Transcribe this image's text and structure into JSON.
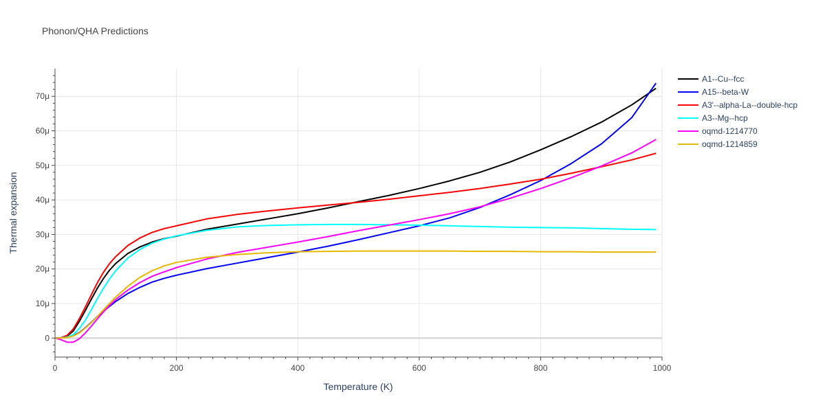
{
  "chart_data": {
    "type": "line",
    "title": "Phonon/QHA Predictions",
    "xlabel": "Temperature (K)",
    "ylabel": "Thermal expansion",
    "xlim": [
      0,
      1000
    ],
    "ylim": [
      -5.5,
      78
    ],
    "xticks": [
      0,
      200,
      400,
      600,
      800,
      1000
    ],
    "xtick_labels": [
      "0",
      "200",
      "400",
      "600",
      "800",
      "1000"
    ],
    "yticks": [
      0,
      10,
      20,
      30,
      40,
      50,
      60,
      70
    ],
    "ytick_labels": [
      "0",
      "10μ",
      "20μ",
      "30μ",
      "40μ",
      "50μ",
      "60μ",
      "70μ"
    ],
    "grid": true,
    "legend_position": "right",
    "series": [
      {
        "name": "A1--Cu--fcc",
        "color": "#000000",
        "x": [
          0,
          10,
          20,
          30,
          40,
          50,
          60,
          70,
          80,
          90,
          100,
          120,
          140,
          160,
          180,
          200,
          250,
          300,
          350,
          400,
          450,
          500,
          550,
          600,
          650,
          700,
          750,
          800,
          850,
          900,
          950,
          990
        ],
        "y": [
          0,
          0.1,
          0.6,
          2.0,
          4.8,
          8.0,
          11.3,
          14.5,
          17.3,
          19.7,
          21.6,
          24.5,
          26.4,
          27.8,
          28.8,
          29.5,
          31.5,
          33.0,
          34.5,
          36.0,
          37.7,
          39.5,
          41.3,
          43.3,
          45.5,
          48.0,
          51.0,
          54.5,
          58.3,
          62.5,
          67.5,
          72.3
        ]
      },
      {
        "name": "A15--beta-W",
        "color": "#0000ff",
        "x": [
          0,
          10,
          20,
          30,
          40,
          50,
          60,
          70,
          80,
          90,
          100,
          120,
          140,
          160,
          180,
          200,
          250,
          300,
          350,
          400,
          450,
          500,
          550,
          600,
          650,
          700,
          750,
          800,
          850,
          900,
          950,
          990
        ],
        "y": [
          0,
          0.05,
          0.2,
          0.7,
          1.6,
          3.0,
          4.6,
          6.3,
          7.8,
          9.2,
          10.6,
          12.9,
          14.7,
          16.2,
          17.3,
          18.2,
          20.1,
          21.7,
          23.3,
          24.9,
          26.6,
          28.5,
          30.5,
          32.5,
          34.8,
          37.8,
          41.5,
          45.6,
          50.5,
          56.2,
          63.8,
          73.8
        ]
      },
      {
        "name": "A3'--alpha-La--double-hcp",
        "color": "#ff0000",
        "x": [
          0,
          10,
          20,
          30,
          40,
          50,
          60,
          70,
          80,
          90,
          100,
          120,
          140,
          160,
          180,
          200,
          250,
          300,
          350,
          400,
          450,
          500,
          550,
          600,
          650,
          700,
          750,
          800,
          850,
          900,
          950,
          990
        ],
        "y": [
          0,
          0.1,
          0.8,
          2.6,
          5.6,
          9.0,
          12.6,
          16.1,
          19.1,
          21.6,
          23.6,
          26.8,
          29.0,
          30.6,
          31.7,
          32.5,
          34.5,
          35.8,
          36.8,
          37.7,
          38.5,
          39.3,
          40.2,
          41.2,
          42.2,
          43.3,
          44.6,
          46.0,
          47.7,
          49.6,
          51.6,
          53.5
        ]
      },
      {
        "name": "A3--Mg--hcp",
        "color": "#00ffff",
        "x": [
          0,
          10,
          20,
          30,
          40,
          50,
          60,
          70,
          80,
          90,
          100,
          120,
          140,
          160,
          180,
          200,
          250,
          300,
          350,
          400,
          450,
          500,
          550,
          600,
          650,
          700,
          750,
          800,
          850,
          900,
          950,
          990
        ],
        "y": [
          0,
          0.05,
          0.3,
          1.0,
          2.8,
          5.2,
          8.3,
          11.5,
          14.5,
          17.2,
          19.5,
          23.2,
          25.7,
          27.5,
          28.7,
          29.6,
          31.2,
          32.2,
          32.6,
          32.8,
          32.9,
          32.9,
          32.8,
          32.7,
          32.5,
          32.3,
          32.1,
          32.0,
          31.9,
          31.7,
          31.5,
          31.4
        ]
      },
      {
        "name": "oqmd-1214770",
        "color": "#ff00ff",
        "x": [
          0,
          10,
          20,
          30,
          40,
          50,
          60,
          70,
          80,
          90,
          100,
          120,
          140,
          160,
          180,
          200,
          250,
          300,
          350,
          400,
          450,
          500,
          550,
          600,
          650,
          700,
          750,
          800,
          850,
          900,
          950,
          990
        ],
        "y": [
          0,
          -0.5,
          -1.2,
          -1.2,
          -0.2,
          1.5,
          3.5,
          5.6,
          7.6,
          9.5,
          11.2,
          13.9,
          16.1,
          17.9,
          19.2,
          20.4,
          22.9,
          24.8,
          26.3,
          27.8,
          29.4,
          31.1,
          32.7,
          34.3,
          36.0,
          38.0,
          40.5,
          43.3,
          46.4,
          49.8,
          53.6,
          57.5
        ]
      },
      {
        "name": "oqmd-1214859",
        "color": "#e6b800",
        "x": [
          0,
          10,
          20,
          30,
          40,
          50,
          60,
          70,
          80,
          90,
          100,
          120,
          140,
          160,
          180,
          200,
          250,
          300,
          350,
          400,
          450,
          500,
          550,
          600,
          650,
          700,
          750,
          800,
          850,
          900,
          950,
          990
        ],
        "y": [
          0,
          0.02,
          0.15,
          0.6,
          1.5,
          2.9,
          4.5,
          6.3,
          8.2,
          10.1,
          11.9,
          15.0,
          17.6,
          19.5,
          20.9,
          21.9,
          23.4,
          24.2,
          24.7,
          25.0,
          25.1,
          25.2,
          25.2,
          25.2,
          25.2,
          25.1,
          25.1,
          25.0,
          25.0,
          24.9,
          24.9,
          24.9
        ]
      }
    ]
  }
}
